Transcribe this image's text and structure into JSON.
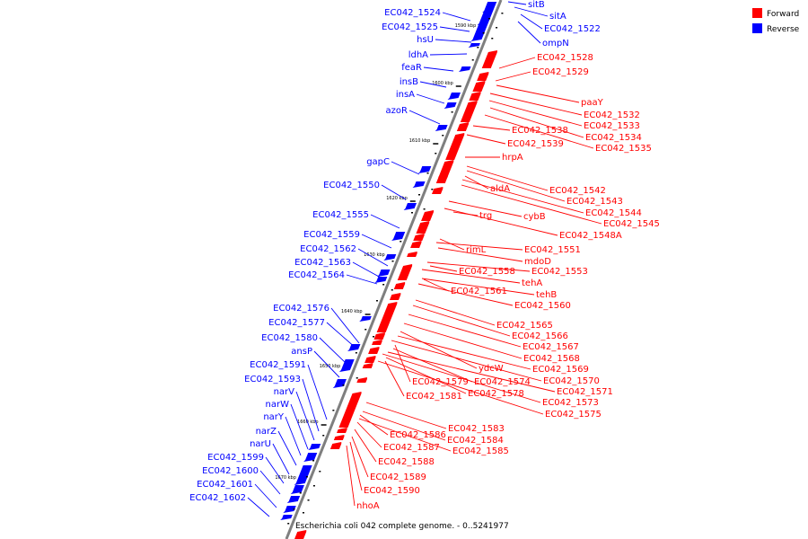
{
  "caption": "Escherichia coli 042 complete genome. - 0..5241977",
  "legend": [
    {
      "label": "Forward",
      "color": "#ff0000"
    },
    {
      "label": "Reverse",
      "color": "#0000ff"
    }
  ],
  "colors": {
    "forward": "#ff0000",
    "reverse": "#0000ff",
    "axis": "#7f7f7f",
    "feature_dark": "#660000"
  },
  "ticks": [
    "1590 kbp",
    "1600 kbp",
    "1610 kbp",
    "1620 kbp",
    "1630 kbp",
    "1640 kbp",
    "1650 kbp",
    "1660 kbp",
    "1670 kbp"
  ],
  "reverse_features": [
    {
      "label": "EC042_1524"
    },
    {
      "label": "EC042_1525"
    },
    {
      "label": "hsU"
    },
    {
      "label": "ldhA"
    },
    {
      "label": "feaR"
    },
    {
      "label": "insB"
    },
    {
      "label": "insA"
    },
    {
      "label": "azoR"
    },
    {
      "label": "gapC"
    },
    {
      "label": "EC042_1550"
    },
    {
      "label": "EC042_1555"
    },
    {
      "label": "EC042_1559"
    },
    {
      "label": "EC042_1562"
    },
    {
      "label": "EC042_1563"
    },
    {
      "label": "EC042_1564"
    },
    {
      "label": "EC042_1576"
    },
    {
      "label": "EC042_1577"
    },
    {
      "label": "EC042_1580"
    },
    {
      "label": "ansP"
    },
    {
      "label": "EC042_1591"
    },
    {
      "label": "EC042_1593"
    },
    {
      "label": "narV"
    },
    {
      "label": "narW"
    },
    {
      "label": "narY"
    },
    {
      "label": "narZ"
    },
    {
      "label": "narU"
    },
    {
      "label": "EC042_1599"
    },
    {
      "label": "EC042_1600"
    },
    {
      "label": "EC042_1601"
    },
    {
      "label": "EC042_1602"
    },
    {
      "label": "sitB"
    },
    {
      "label": "sitA"
    },
    {
      "label": "EC042_1522"
    },
    {
      "label": "ompN"
    }
  ],
  "forward_features": [
    {
      "label": "EC042_1528"
    },
    {
      "label": "EC042_1529"
    },
    {
      "label": "paaY"
    },
    {
      "label": "EC042_1532"
    },
    {
      "label": "EC042_1533"
    },
    {
      "label": "EC042_1534"
    },
    {
      "label": "EC042_1535"
    },
    {
      "label": "EC042_1538"
    },
    {
      "label": "EC042_1539"
    },
    {
      "label": "hrpA"
    },
    {
      "label": "aldA"
    },
    {
      "label": "EC042_1542"
    },
    {
      "label": "EC042_1543"
    },
    {
      "label": "EC042_1544"
    },
    {
      "label": "EC042_1545"
    },
    {
      "label": "trg"
    },
    {
      "label": "cybB"
    },
    {
      "label": "EC042_1548A"
    },
    {
      "label": "rimL"
    },
    {
      "label": "EC042_1551"
    },
    {
      "label": "mdoD"
    },
    {
      "label": "EC042_1558"
    },
    {
      "label": "EC042_1553"
    },
    {
      "label": "tehA"
    },
    {
      "label": "EC042_1561"
    },
    {
      "label": "tehB"
    },
    {
      "label": "EC042_1560"
    },
    {
      "label": "EC042_1565"
    },
    {
      "label": "EC042_1566"
    },
    {
      "label": "EC042_1567"
    },
    {
      "label": "EC042_1568"
    },
    {
      "label": "ydcW"
    },
    {
      "label": "EC042_1569"
    },
    {
      "label": "EC042_1579"
    },
    {
      "label": "EC042_1574"
    },
    {
      "label": "EC042_1570"
    },
    {
      "label": "EC042_1581"
    },
    {
      "label": "EC042_1578"
    },
    {
      "label": "EC042_1571"
    },
    {
      "label": "EC042_1573"
    },
    {
      "label": "EC042_1575"
    },
    {
      "label": "EC042_1583"
    },
    {
      "label": "EC042_1586"
    },
    {
      "label": "EC042_1584"
    },
    {
      "label": "EC042_1587"
    },
    {
      "label": "EC042_1585"
    },
    {
      "label": "EC042_1588"
    },
    {
      "label": "EC042_1589"
    },
    {
      "label": "EC042_1590"
    },
    {
      "label": "nhoA"
    }
  ]
}
